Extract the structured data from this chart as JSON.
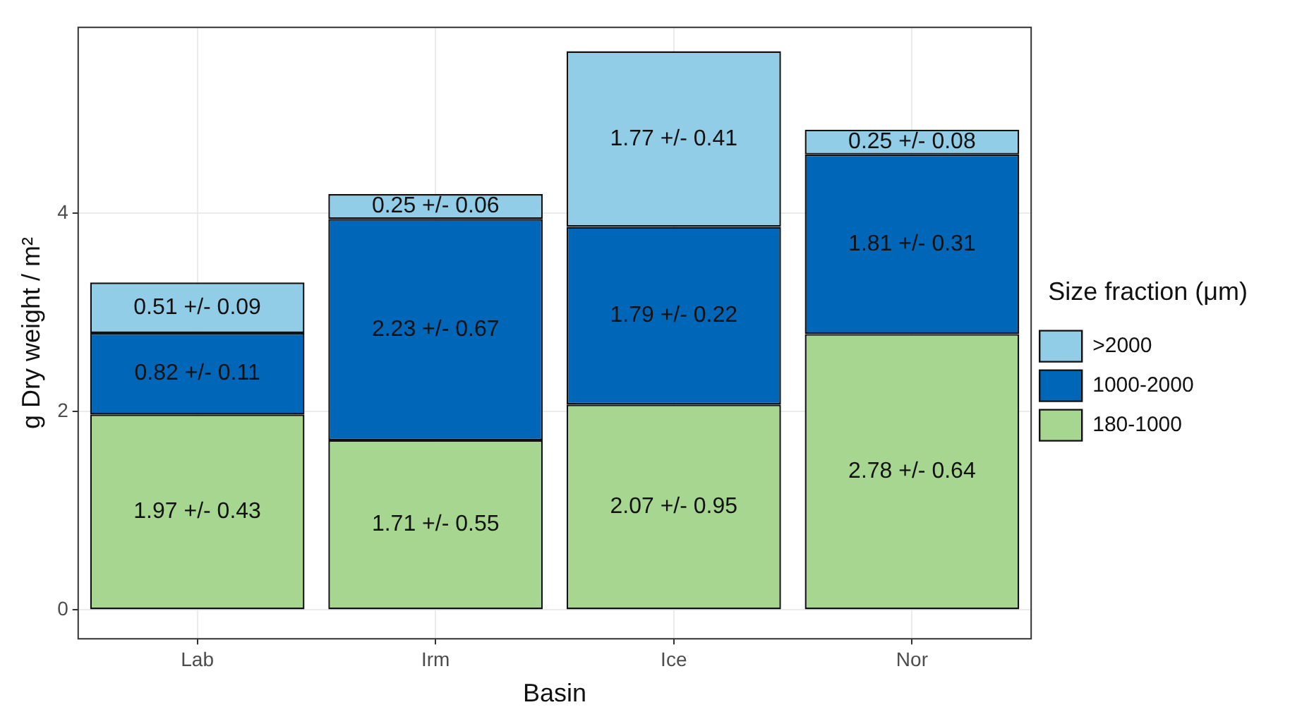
{
  "chart_data": {
    "type": "bar",
    "stacked": true,
    "xlabel": "Basin",
    "ylabel": "g Dry weight / m²",
    "legend_title": "Size fraction (μm)",
    "legend": "right",
    "grid": true,
    "categories": [
      "Lab",
      "Irm",
      "Ice",
      "Nor"
    ],
    "ylim": [
      -0.29,
      5.87
    ],
    "yticks": [
      0,
      2,
      4
    ],
    "series": [
      {
        "name": "180-1000",
        "color": "#a6d68f",
        "values": [
          1.97,
          1.71,
          2.07,
          2.78
        ],
        "value_labels": [
          "1.97 +/- 0.43",
          "1.71 +/- 0.55",
          "2.07 +/- 0.95",
          "2.78 +/- 0.64"
        ]
      },
      {
        "name": "1000-2000",
        "color": "#0066b8",
        "values": [
          0.82,
          2.23,
          1.79,
          1.81
        ],
        "value_labels": [
          "0.82 +/- 0.11",
          "2.23 +/- 0.67",
          "1.79 +/- 0.22",
          "1.81 +/- 0.31"
        ]
      },
      {
        "name": ">2000",
        "color": "#92cde8",
        "values": [
          0.51,
          0.25,
          1.77,
          0.25
        ],
        "value_labels": [
          "0.51 +/- 0.09",
          "0.25 +/- 0.06",
          "1.77 +/- 0.41",
          "0.25 +/- 0.08"
        ]
      }
    ]
  }
}
